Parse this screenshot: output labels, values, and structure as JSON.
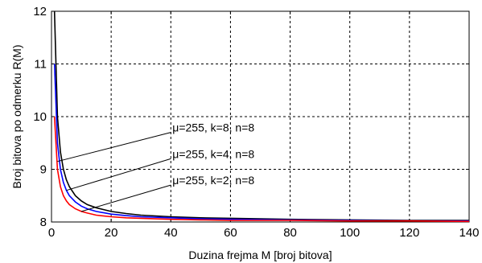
{
  "chart_data": {
    "type": "line",
    "xlabel": "Duzina frejma M [broj bitova]",
    "ylabel": "Broj bitova po odmerku R(M)",
    "xlim": [
      0,
      140
    ],
    "ylim": [
      8,
      12
    ],
    "xticks": [
      0,
      20,
      40,
      60,
      80,
      100,
      120,
      140
    ],
    "yticks": [
      8,
      9,
      10,
      11,
      12
    ],
    "grid": true,
    "x": [
      1,
      2,
      3,
      4,
      5,
      6,
      8,
      10,
      12,
      15,
      20,
      25,
      30,
      40,
      50,
      60,
      80,
      100,
      120,
      140
    ],
    "series": [
      {
        "color": "#000000",
        "values": [
          12.0,
          10.0,
          9.33,
          9.0,
          8.8,
          8.67,
          8.5,
          8.4,
          8.33,
          8.27,
          8.2,
          8.16,
          8.13,
          8.1,
          8.08,
          8.07,
          8.05,
          8.04,
          8.03,
          8.03
        ]
      },
      {
        "color": "#0000ff",
        "values": [
          11.0,
          9.5,
          9.0,
          8.75,
          8.6,
          8.5,
          8.38,
          8.3,
          8.25,
          8.2,
          8.15,
          8.12,
          8.1,
          8.08,
          8.06,
          8.05,
          8.04,
          8.03,
          8.02,
          8.02
        ]
      },
      {
        "color": "#ff0000",
        "values": [
          10.0,
          9.0,
          8.67,
          8.5,
          8.4,
          8.33,
          8.25,
          8.2,
          8.17,
          8.13,
          8.1,
          8.08,
          8.07,
          8.05,
          8.04,
          8.03,
          8.03,
          8.02,
          8.02,
          8.01
        ]
      }
    ],
    "annotations": [
      {
        "text": "μ=255, k=8, n=8",
        "target": [
          2,
          9.15
        ],
        "anchor": [
          40,
          9.7
        ]
      },
      {
        "text": "μ=255, k=4, n=8",
        "target": [
          5,
          8.6
        ],
        "anchor": [
          40,
          9.2
        ]
      },
      {
        "text": "μ=255, k=2, n=8",
        "target": [
          10,
          8.2
        ],
        "anchor": [
          40,
          8.7
        ]
      }
    ]
  }
}
